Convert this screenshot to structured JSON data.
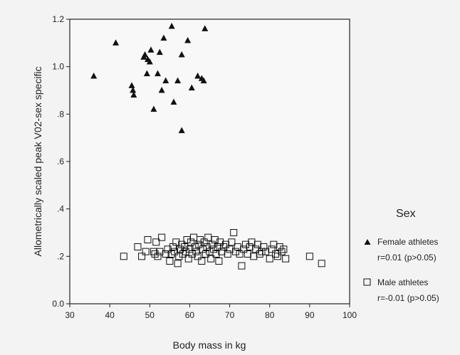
{
  "chart_data": {
    "type": "scatter",
    "xlabel": "Body mass in kg",
    "ylabel": "Allometrically scaled peak V02-sex specific",
    "xlim": [
      30,
      100
    ],
    "ylim": [
      0.0,
      1.2
    ],
    "x_ticks": [
      "30",
      "40",
      "50",
      "60",
      "70",
      "80",
      "90",
      "100"
    ],
    "y_ticks": [
      {
        "value": 0.0,
        "label": "0.0"
      },
      {
        "value": 0.2,
        "label": ".2"
      },
      {
        "value": 0.4,
        "label": ".4"
      },
      {
        "value": 0.6,
        "label": ".6"
      },
      {
        "value": 0.8,
        "label": ".8"
      },
      {
        "value": 1.0,
        "label": "1.0"
      },
      {
        "value": 1.2,
        "label": "1.2"
      }
    ],
    "grid": false,
    "legend": {
      "title": "Sex",
      "placement": "right",
      "entries": [
        {
          "label": "Female athletes",
          "stat": "r=0.01 (p>0.05)",
          "marker": "filled-triangle"
        },
        {
          "label": "Male athletes",
          "stat": "r=-0.01 (p>0.05)",
          "marker": "open-square"
        }
      ]
    },
    "series": [
      {
        "name": "Female athletes",
        "marker": "filled-triangle",
        "color": "#111111",
        "points": [
          [
            36,
            0.96
          ],
          [
            41.5,
            1.1
          ],
          [
            45.5,
            0.92
          ],
          [
            45.8,
            0.9
          ],
          [
            46,
            0.88
          ],
          [
            48.5,
            1.04
          ],
          [
            48.8,
            1.05
          ],
          [
            49.3,
            0.97
          ],
          [
            49.5,
            1.03
          ],
          [
            50,
            1.02
          ],
          [
            50.3,
            1.07
          ],
          [
            51,
            0.82
          ],
          [
            52,
            0.97
          ],
          [
            52.5,
            1.06
          ],
          [
            53,
            0.9
          ],
          [
            53.5,
            1.12
          ],
          [
            54,
            0.94
          ],
          [
            55.5,
            1.17
          ],
          [
            56,
            0.85
          ],
          [
            57,
            0.94
          ],
          [
            58,
            0.73
          ],
          [
            58,
            1.05
          ],
          [
            59.5,
            1.11
          ],
          [
            60.5,
            0.91
          ],
          [
            62,
            0.96
          ],
          [
            63,
            0.95
          ],
          [
            63.5,
            0.94
          ],
          [
            63.8,
            1.16
          ]
        ]
      },
      {
        "name": "Male athletes",
        "marker": "open-square",
        "color": "#111111",
        "points": [
          [
            43.5,
            0.2
          ],
          [
            47,
            0.24
          ],
          [
            48,
            0.2
          ],
          [
            49,
            0.22
          ],
          [
            49.5,
            0.27
          ],
          [
            51,
            0.22
          ],
          [
            51.3,
            0.21
          ],
          [
            51.6,
            0.26
          ],
          [
            52,
            0.2
          ],
          [
            52.5,
            0.22
          ],
          [
            53,
            0.28
          ],
          [
            54,
            0.21
          ],
          [
            54.5,
            0.23
          ],
          [
            55,
            0.18
          ],
          [
            55.4,
            0.21
          ],
          [
            55.8,
            0.24
          ],
          [
            56.2,
            0.22
          ],
          [
            56.6,
            0.26
          ],
          [
            57,
            0.17
          ],
          [
            57.3,
            0.2
          ],
          [
            57.6,
            0.23
          ],
          [
            58,
            0.25
          ],
          [
            58.3,
            0.21
          ],
          [
            58.7,
            0.24
          ],
          [
            59,
            0.22
          ],
          [
            59.3,
            0.27
          ],
          [
            59.7,
            0.19
          ],
          [
            60,
            0.23
          ],
          [
            60.3,
            0.26
          ],
          [
            60.6,
            0.21
          ],
          [
            61,
            0.28
          ],
          [
            61.3,
            0.24
          ],
          [
            61.6,
            0.22
          ],
          [
            62,
            0.2
          ],
          [
            62.3,
            0.25
          ],
          [
            62.6,
            0.27
          ],
          [
            63,
            0.18
          ],
          [
            63.3,
            0.23
          ],
          [
            63.6,
            0.26
          ],
          [
            64,
            0.21
          ],
          [
            64.3,
            0.24
          ],
          [
            64.6,
            0.28
          ],
          [
            65,
            0.22
          ],
          [
            65.3,
            0.19
          ],
          [
            65.6,
            0.25
          ],
          [
            66,
            0.23
          ],
          [
            66.3,
            0.27
          ],
          [
            66.6,
            0.21
          ],
          [
            67,
            0.24
          ],
          [
            67.3,
            0.18
          ],
          [
            67.6,
            0.26
          ],
          [
            68,
            0.22
          ],
          [
            68.5,
            0.24
          ],
          [
            69,
            0.25
          ],
          [
            69.5,
            0.21
          ],
          [
            70,
            0.23
          ],
          [
            70.5,
            0.26
          ],
          [
            71,
            0.3
          ],
          [
            71.5,
            0.22
          ],
          [
            72,
            0.24
          ],
          [
            72.5,
            0.21
          ],
          [
            73,
            0.16
          ],
          [
            73.5,
            0.23
          ],
          [
            74,
            0.25
          ],
          [
            74.5,
            0.21
          ],
          [
            75,
            0.24
          ],
          [
            75.5,
            0.26
          ],
          [
            76,
            0.2
          ],
          [
            76.5,
            0.23
          ],
          [
            77,
            0.25
          ],
          [
            77.5,
            0.21
          ],
          [
            78,
            0.22
          ],
          [
            78.5,
            0.24
          ],
          [
            79,
            0.22
          ],
          [
            80,
            0.19
          ],
          [
            80.5,
            0.23
          ],
          [
            81,
            0.25
          ],
          [
            81.5,
            0.21
          ],
          [
            82,
            0.2
          ],
          [
            82.5,
            0.24
          ],
          [
            83,
            0.22
          ],
          [
            83.5,
            0.23
          ],
          [
            84,
            0.19
          ],
          [
            90,
            0.2
          ],
          [
            93,
            0.17
          ]
        ]
      }
    ]
  }
}
